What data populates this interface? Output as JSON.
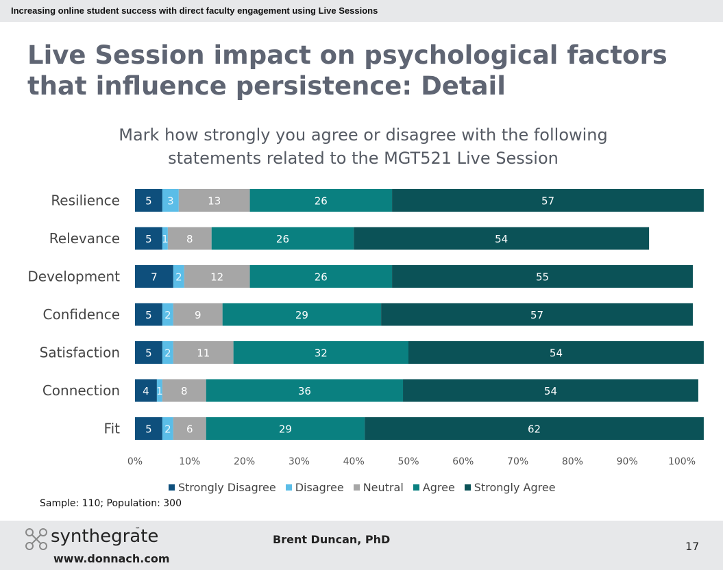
{
  "header": {
    "banner": "Increasing online student success with direct faculty engagement using Live Sessions"
  },
  "slide": {
    "title_line1": "Live Session impact on psychological factors",
    "title_line2": "that influence persistence: Detail"
  },
  "chart_data": {
    "type": "bar",
    "orientation": "horizontal",
    "stacked": "100%",
    "title_line1": "Mark how strongly you agree or disagree with the following",
    "title_line2": "statements related to the MGT521 Live Session",
    "categories": [
      "Resilience",
      "Relevance",
      "Development",
      "Confidence",
      "Satisfaction",
      "Connection",
      "Fit"
    ],
    "series": [
      {
        "name": "Strongly Disagree",
        "color": "#0e4f7c",
        "values": [
          5,
          5,
          7,
          5,
          5,
          4,
          5
        ]
      },
      {
        "name": "Disagree",
        "color": "#5bbde7",
        "values": [
          3,
          1,
          2,
          2,
          2,
          1,
          2
        ]
      },
      {
        "name": "Neutral",
        "color": "#a6a6a6",
        "values": [
          13,
          8,
          12,
          9,
          11,
          8,
          6
        ]
      },
      {
        "name": "Agree",
        "color": "#0a8080",
        "values": [
          26,
          26,
          26,
          29,
          32,
          36,
          29
        ]
      },
      {
        "name": "Strongly Agree",
        "color": "#0b5257",
        "values": [
          57,
          54,
          55,
          57,
          54,
          54,
          62
        ]
      }
    ],
    "xlim": [
      0,
      100
    ],
    "xticks": [
      "0%",
      "10%",
      "20%",
      "30%",
      "40%",
      "50%",
      "60%",
      "70%",
      "80%",
      "90%",
      "100%"
    ],
    "legend_position": "bottom",
    "grid": false
  },
  "note": "Sample: 110; Population: 300",
  "footer": {
    "logo_text": "synthegrate",
    "logo_tm": "™",
    "website": "www.donnach.com",
    "author": "Brent Duncan, PhD",
    "page_number": "17"
  }
}
